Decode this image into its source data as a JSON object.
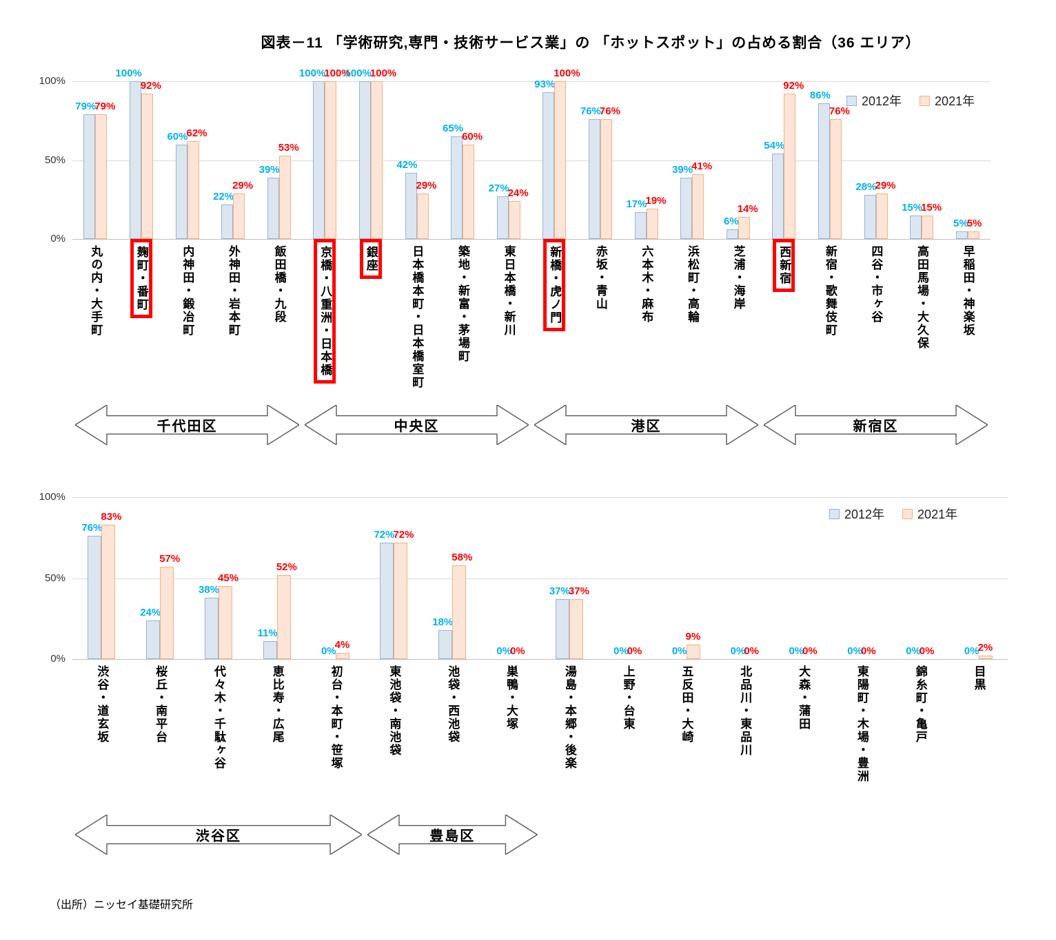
{
  "title": "図表－11 「学術研究,専門・技術サービス業」の 「ホットスポット」の占める割合（36 エリア）",
  "source": "（出所）ニッセイ基礎研究所",
  "colors": {
    "bar_2012_fill": "#dce6f1",
    "bar_2012_border": "#95b3d7",
    "bar_2021_fill": "#fce4d6",
    "bar_2021_border": "#f4b183",
    "label_2012": "#00b0f0",
    "label_2021": "#ff0000",
    "highlight_box": "#ff0000",
    "arrow_stroke": "#595959"
  },
  "chart_data": [
    {
      "type": "bar",
      "panel": "top",
      "ylim": [
        0,
        100
      ],
      "yticks": [
        0,
        50,
        100
      ],
      "legend_position": "top-right",
      "categories": [
        "丸の内・大手町",
        "麹町・番町",
        "内神田・鍛冶町",
        "外神田・岩本町",
        "飯田橋・九段",
        "京橋・八重洲・日本橋",
        "銀座",
        "日本橋本町・日本橋室町",
        "築地・新富・茅場町",
        "東日本橋・新川",
        "新橋・虎ノ門",
        "赤坂・青山",
        "六本木・麻布",
        "浜松町・高輪",
        "芝浦・海岸",
        "西新宿",
        "新宿・歌舞伎町",
        "四谷・市ヶ谷",
        "高田馬場・大久保",
        "早稲田・神楽坂"
      ],
      "series": [
        {
          "name": "2012年",
          "values": [
            79,
            100,
            60,
            22,
            39,
            100,
            100,
            42,
            65,
            27,
            93,
            76,
            17,
            39,
            6,
            54,
            86,
            28,
            15,
            5
          ]
        },
        {
          "name": "2021年",
          "values": [
            79,
            92,
            62,
            29,
            53,
            100,
            100,
            29,
            60,
            24,
            100,
            76,
            19,
            41,
            14,
            92,
            76,
            29,
            15,
            5
          ]
        }
      ],
      "highlighted_category_indexes": [
        1,
        5,
        6,
        10,
        15
      ],
      "ward_arrows": [
        {
          "label": "千代田区",
          "from": 0,
          "to": 4
        },
        {
          "label": "中央区",
          "from": 5,
          "to": 9
        },
        {
          "label": "港区",
          "from": 10,
          "to": 14
        },
        {
          "label": "新宿区",
          "from": 15,
          "to": 19
        }
      ]
    },
    {
      "type": "bar",
      "panel": "bottom",
      "ylim": [
        0,
        100
      ],
      "yticks": [
        0,
        50,
        100
      ],
      "legend_position": "top-right",
      "categories": [
        "渋谷・道玄坂",
        "桜丘・南平台",
        "代々木・千駄ヶ谷",
        "恵比寿・広尾",
        "初台・本町・笹塚",
        "東池袋・南池袋",
        "池袋・西池袋",
        "巣鴨・大塚",
        "湯島・本郷・後楽",
        "上野・台東",
        "五反田・大崎",
        "北品川・東品川",
        "大森・蒲田",
        "東陽町・木場・豊洲",
        "錦糸町・亀戸",
        "目黒"
      ],
      "series": [
        {
          "name": "2012年",
          "values": [
            76,
            24,
            38,
            11,
            0,
            72,
            18,
            0,
            37,
            0,
            0,
            0,
            0,
            0,
            0,
            0
          ]
        },
        {
          "name": "2021年",
          "values": [
            83,
            57,
            45,
            52,
            4,
            72,
            58,
            0,
            37,
            0,
            9,
            0,
            0,
            0,
            0,
            2
          ]
        }
      ],
      "highlighted_category_indexes": [],
      "ward_arrows": [
        {
          "label": "渋谷区",
          "from": 0,
          "to": 4
        },
        {
          "label": "豊島区",
          "from": 5,
          "to": 7
        }
      ]
    }
  ]
}
